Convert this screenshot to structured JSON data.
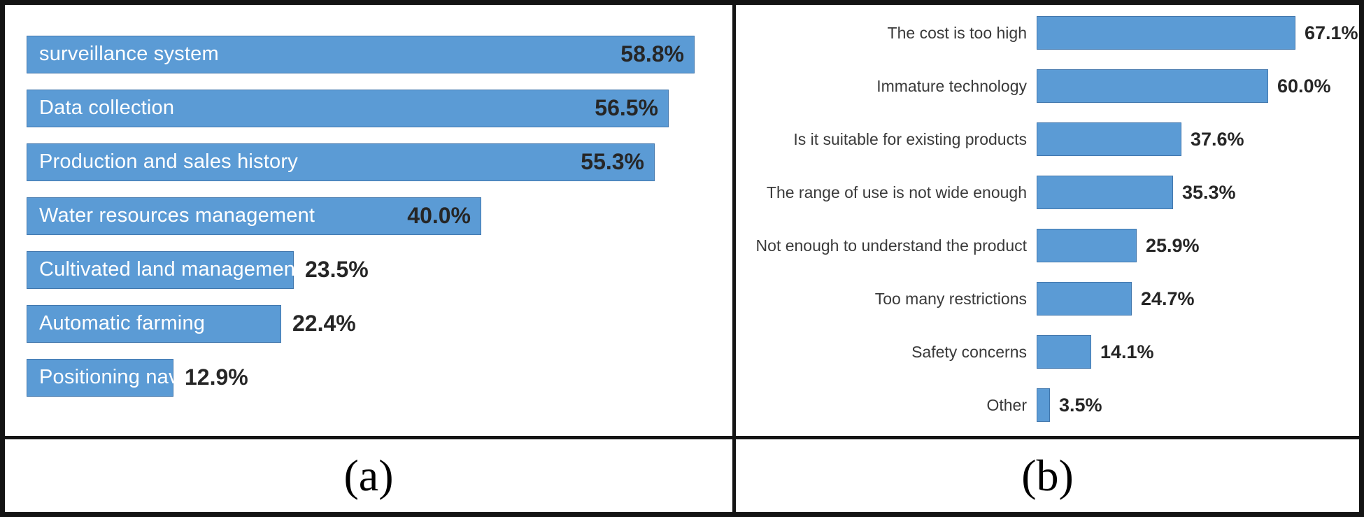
{
  "figure": {
    "panels": [
      {
        "id": "a",
        "caption": "(a)"
      },
      {
        "id": "b",
        "caption": "(b)"
      }
    ]
  },
  "chart_data": [
    {
      "type": "bar",
      "orientation": "horizontal",
      "panel": "a",
      "title": "",
      "xlabel": "",
      "ylabel": "",
      "xlim": [
        0,
        60
      ],
      "grid": false,
      "legend": false,
      "bar_color": "#5b9bd5",
      "categories": [
        "surveillance system",
        "Data collection",
        "Production and sales history",
        "Water resources management",
        "Cultivated land management",
        "Automatic farming",
        "Positioning navigation"
      ],
      "values": [
        58.8,
        56.5,
        55.3,
        40.0,
        23.5,
        22.4,
        12.9
      ],
      "value_labels": [
        "58.8%",
        "56.5%",
        "55.3%",
        "40.0%",
        "23.5%",
        "22.4%",
        "12.9%"
      ],
      "category_label_position": "inside-bar-left",
      "value_label_position": "inside-if-bar-long-else-right"
    },
    {
      "type": "bar",
      "orientation": "horizontal",
      "panel": "b",
      "title": "",
      "xlabel": "",
      "ylabel": "",
      "xlim": [
        0,
        70
      ],
      "grid": false,
      "legend": false,
      "bar_color": "#5b9bd5",
      "categories": [
        "The cost is too high",
        "Immature technology",
        "Is it suitable for existing products",
        "The range of use is not wide enough",
        "Not enough to understand the product",
        "Too many restrictions",
        "Safety concerns",
        "Other"
      ],
      "values": [
        67.1,
        60.0,
        37.6,
        35.3,
        25.9,
        24.7,
        14.1,
        3.5
      ],
      "value_labels": [
        "67.1%",
        "60.0%",
        "37.6%",
        "35.3%",
        "25.9%",
        "24.7%",
        "14.1%",
        "3.5%"
      ],
      "category_label_position": "left-of-bar",
      "value_label_position": "right-of-bar"
    }
  ]
}
